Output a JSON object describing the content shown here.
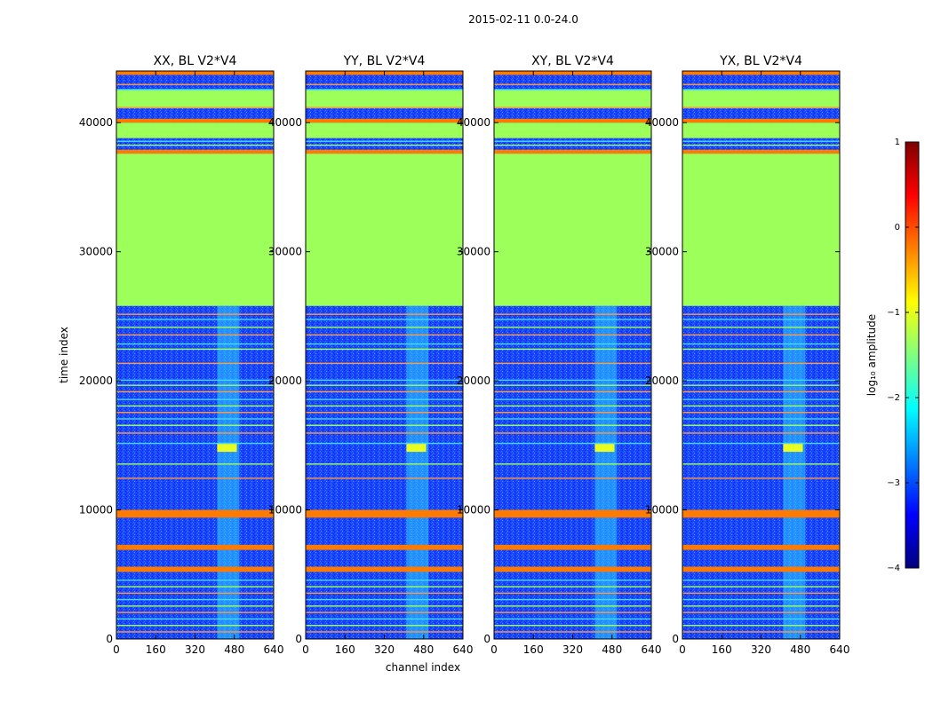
{
  "figure": {
    "suptitle": "2015-02-11 0.0-24.0",
    "xlabel": "channel index",
    "ylabel": "time index"
  },
  "chart_data": [
    {
      "type": "heatmap",
      "title": "XX, BL V2*V4",
      "xlabel": "channel index",
      "ylabel": "time index",
      "xlim": [
        0,
        640
      ],
      "ylim": [
        0,
        44000
      ],
      "xticks": [
        0,
        160,
        320,
        480,
        640
      ],
      "yticks": [
        0,
        10000,
        20000,
        30000,
        40000
      ],
      "features": {
        "rfi_band_channels": [
          400,
          500
        ],
        "flagged_time_range": [
          25800,
          37600
        ]
      }
    },
    {
      "type": "heatmap",
      "title": "YY, BL V2*V4",
      "xlabel": "channel index",
      "ylabel": "time index",
      "xlim": [
        0,
        640
      ],
      "ylim": [
        0,
        44000
      ],
      "xticks": [
        0,
        160,
        320,
        480,
        640
      ],
      "yticks": [
        0,
        10000,
        20000,
        30000,
        40000
      ],
      "features": {
        "rfi_band_channels": [
          400,
          500
        ],
        "flagged_time_range": [
          25800,
          37600
        ]
      }
    },
    {
      "type": "heatmap",
      "title": "XY, BL V2*V4",
      "xlabel": "channel index",
      "ylabel": "time index",
      "xlim": [
        0,
        640
      ],
      "ylim": [
        0,
        44000
      ],
      "xticks": [
        0,
        160,
        320,
        480,
        640
      ],
      "yticks": [
        0,
        10000,
        20000,
        30000,
        40000
      ],
      "features": {
        "rfi_band_channels": [
          400,
          500
        ],
        "flagged_time_range": [
          25800,
          37600
        ]
      }
    },
    {
      "type": "heatmap",
      "title": "YX, BL V2*V4",
      "xlabel": "channel index",
      "ylabel": "time index",
      "xlim": [
        0,
        640
      ],
      "ylim": [
        0,
        44000
      ],
      "xticks": [
        0,
        160,
        320,
        480,
        640
      ],
      "yticks": [
        0,
        10000,
        20000,
        30000,
        40000
      ],
      "features": {
        "rfi_band_channels": [
          400,
          500
        ],
        "flagged_time_range": [
          25800,
          37600
        ]
      }
    }
  ],
  "colorbar": {
    "label": "log₁₀ amplitude",
    "range": [
      -4,
      1
    ],
    "ticks": [
      1,
      0,
      -1,
      -2,
      -3,
      -4
    ],
    "tick_labels": [
      "1",
      "0",
      "−1",
      "−2",
      "−3",
      "−4"
    ],
    "colormap": "jet"
  },
  "colors": {
    "flagged": "#9cff5a",
    "background": "#1a44ff",
    "rfi": "#ff7a00"
  }
}
